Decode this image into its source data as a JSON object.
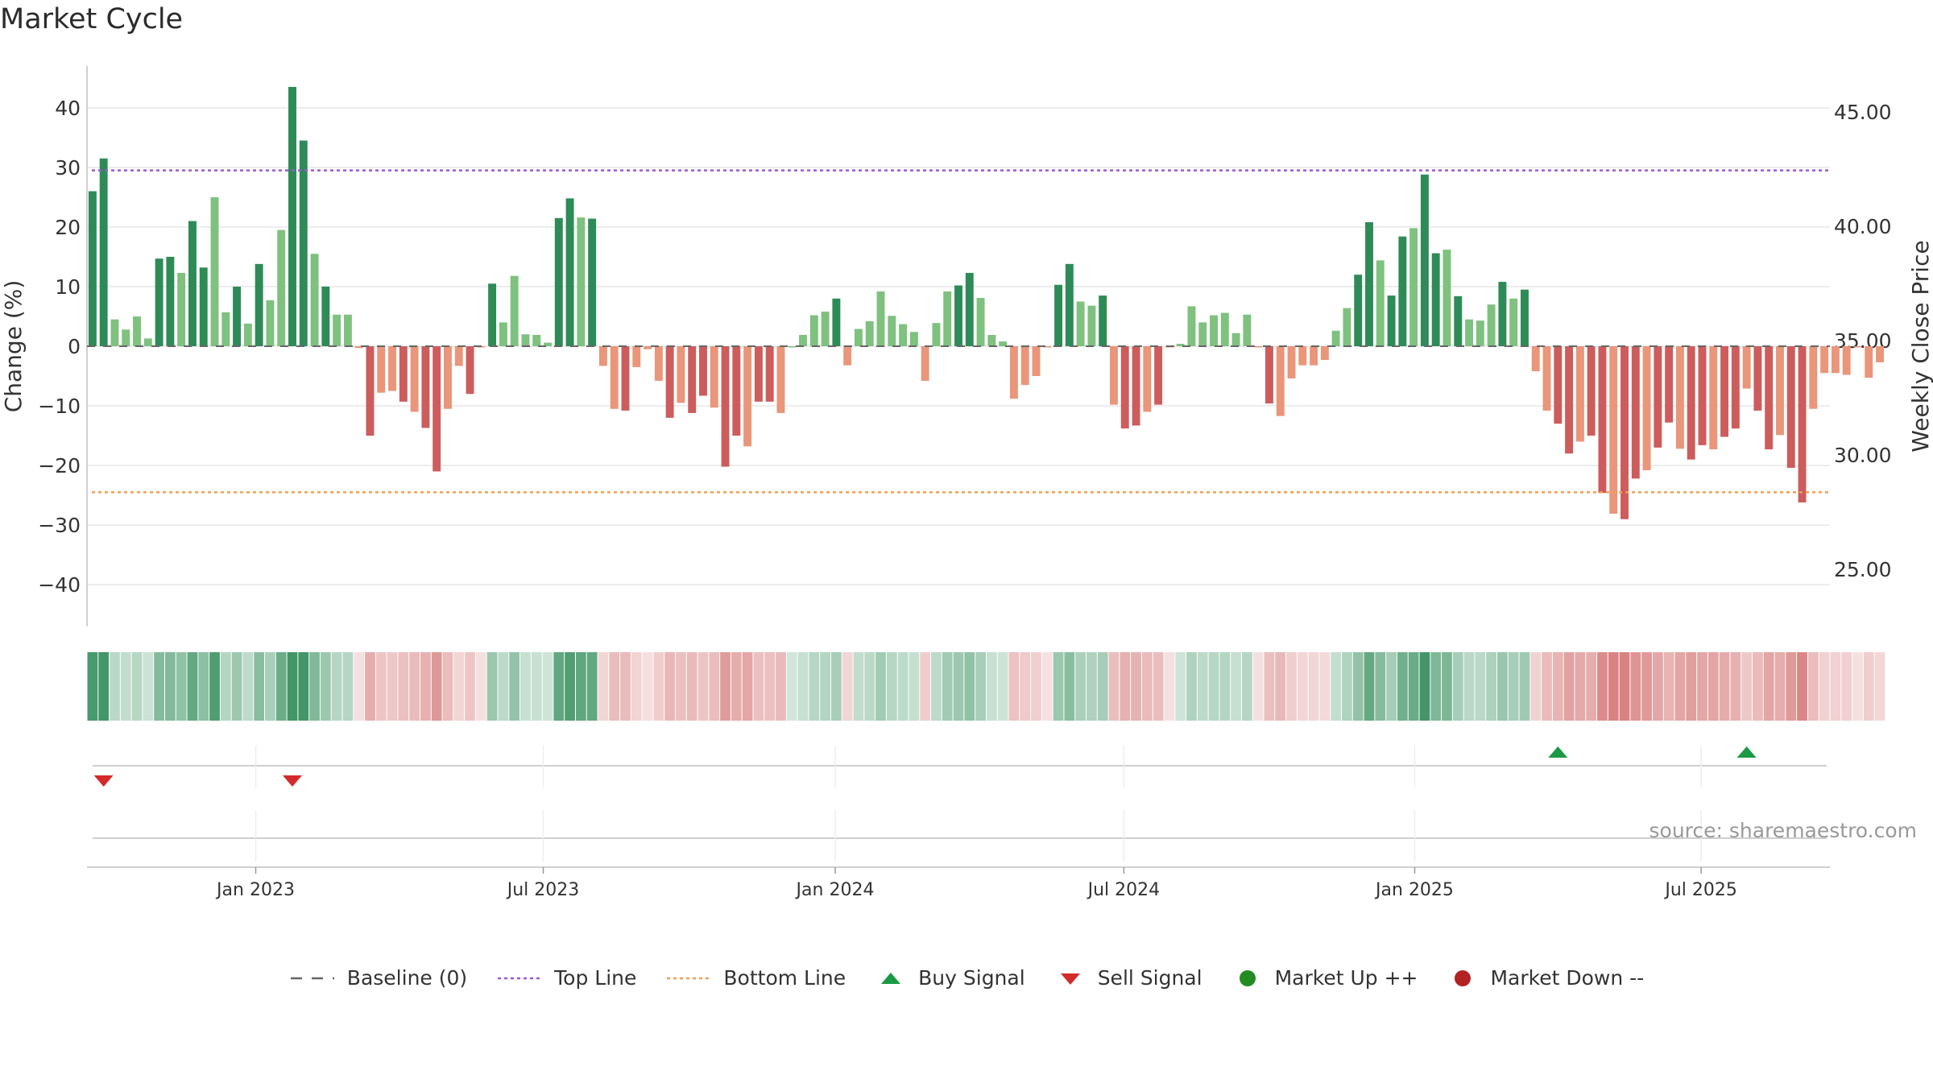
{
  "chart_data": {
    "type": "bar",
    "title": "Market Cycle",
    "ylabel": "Change (%)",
    "y2label": "Weekly Close Price",
    "ylim": [
      -47,
      47
    ],
    "y2lim": [
      22.5,
      47.0
    ],
    "yticks": [
      40,
      30,
      20,
      10,
      0,
      -10,
      -20,
      -30,
      -40
    ],
    "ytick_labels": [
      "40",
      "30",
      "20",
      "10",
      "0",
      "−10",
      "−20",
      "−30",
      "−40"
    ],
    "y2ticks": [
      45,
      40,
      35,
      30,
      25
    ],
    "y2tick_labels": [
      "45.00",
      "40.00",
      "35.00",
      "30.00",
      "25.00"
    ],
    "x_start_date": "2022-10-02",
    "x_range_weeks": [
      -0.5,
      156.5
    ],
    "xticks": [
      {
        "label": "Jan 2023",
        "week": 14.7
      },
      {
        "label": "Jul 2023",
        "week": 40.6
      },
      {
        "label": "Jan 2024",
        "week": 66.9
      },
      {
        "label": "Jul 2024",
        "week": 92.9
      },
      {
        "label": "Jan 2025",
        "week": 119.1
      },
      {
        "label": "Jul 2025",
        "week": 144.9
      }
    ],
    "top_line": 29.5,
    "bottom_line": -24.5,
    "baseline": 0,
    "grid": true,
    "values": [
      26,
      31.5,
      4.5,
      2.8,
      5,
      1.3,
      14.7,
      15,
      12.3,
      21,
      13.2,
      25,
      5.7,
      10,
      3.8,
      13.8,
      7.7,
      19.5,
      43.5,
      34.5,
      15.5,
      10,
      5.3,
      5.3,
      -0.3,
      -15,
      -7.8,
      -7.5,
      -9.3,
      -11,
      -13.7,
      -21,
      -10.5,
      -3.3,
      -8,
      -0.2,
      10.5,
      4,
      11.8,
      2,
      1.9,
      0.6,
      21.5,
      24.8,
      21.6,
      21.4,
      -3.3,
      -10.5,
      -10.8,
      -3.5,
      -0.5,
      -5.8,
      -12,
      -9.5,
      -11.2,
      -8.3,
      -10.3,
      -20.2,
      -15,
      -16.8,
      -9.3,
      -9.3,
      -11.2,
      0,
      1.9,
      5.2,
      5.8,
      8,
      -3.2,
      2.9,
      4.2,
      9.2,
      5.1,
      3.7,
      2.4,
      -5.8,
      3.9,
      9.2,
      10.2,
      12.3,
      8.1,
      1.9,
      0.8,
      -8.8,
      -6.5,
      -5,
      -0.1,
      10.3,
      13.8,
      7.5,
      6.8,
      8.5,
      -9.8,
      -13.8,
      -13.3,
      -11,
      -9.8,
      -0.2,
      0.4,
      6.7,
      4,
      5.2,
      5.6,
      2.2,
      5.3,
      -0.2,
      -9.6,
      -11.7,
      -5.4,
      -3.2,
      -3.2,
      -2.3,
      2.6,
      6.4,
      12,
      20.8,
      14.4,
      8.5,
      18.4,
      19.8,
      28.8,
      15.6,
      16.2,
      8.4,
      4.5,
      4.3,
      7,
      10.8,
      8,
      9.5,
      -4.2,
      -10.8,
      -13,
      -18,
      -16,
      -15,
      -24.6,
      -28.1,
      -29,
      -22.2,
      -20.8,
      -17,
      -12.8,
      -17.2,
      -19,
      -16.6,
      -17.3,
      -15.2,
      -13.8,
      -7.1,
      -10.8,
      -17.3,
      -14.9,
      -20.4,
      -26.2,
      -10.5,
      -4.5,
      -4.5,
      -4.8,
      -0.2,
      -5.3,
      -2.7
    ],
    "sell_signals_weeks": [
      1,
      18
    ],
    "buy_signals_weeks": [
      132,
      149
    ],
    "annotation": "source: sharemaestro.com",
    "legend_position": "bottom-center",
    "colors": {
      "strong_up": "#2e8b57",
      "weak_up": "#7fc17f",
      "strong_down": "#cd5c5c",
      "weak_down": "#e9967a",
      "top_line": "#9b59d0",
      "bottom_line": "#f0a050",
      "buy": "#1a9a44",
      "sell": "#d42a2a",
      "market_up": "#228b22",
      "market_down": "#b22222",
      "baseline": "#666666"
    }
  },
  "legend": [
    {
      "label": "Baseline (0)",
      "icon": "baseline-dash-icon"
    },
    {
      "label": "Top Line",
      "icon": "top-line-dotted-icon"
    },
    {
      "label": "Bottom Line",
      "icon": "bottom-line-dotted-icon"
    },
    {
      "label": "Buy Signal",
      "icon": "triangle-up-icon"
    },
    {
      "label": "Sell Signal",
      "icon": "triangle-down-icon"
    },
    {
      "label": "Market Up ++",
      "icon": "green-dot-icon"
    },
    {
      "label": "Market Down --",
      "icon": "red-dot-icon"
    }
  ]
}
